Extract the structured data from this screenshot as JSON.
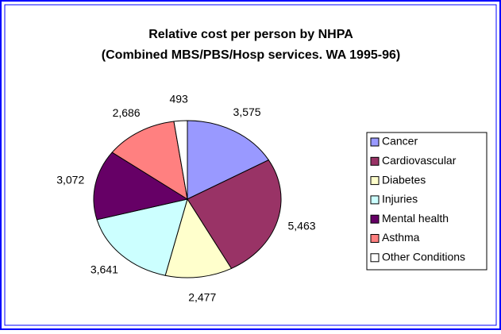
{
  "chart_data": {
    "type": "pie",
    "title": "Relative cost per person by NHPA",
    "subtitle": "(Combined MBS/PBS/Hosp services.  WA 1995-96)",
    "categories": [
      "Cancer",
      "Cardiovascular",
      "Diabetes",
      "Injuries",
      "Mental health",
      "Asthma",
      "Other Conditions"
    ],
    "values": [
      3575,
      5463,
      2477,
      3641,
      3072,
      2686,
      493
    ],
    "value_labels": [
      "3,575",
      "5,463",
      "2,477",
      "3,641",
      "3,072",
      "2,686",
      "493"
    ],
    "colors": [
      "#9999ff",
      "#993366",
      "#ffffcc",
      "#ccffff",
      "#660066",
      "#ff8080",
      "#ffffff"
    ]
  }
}
